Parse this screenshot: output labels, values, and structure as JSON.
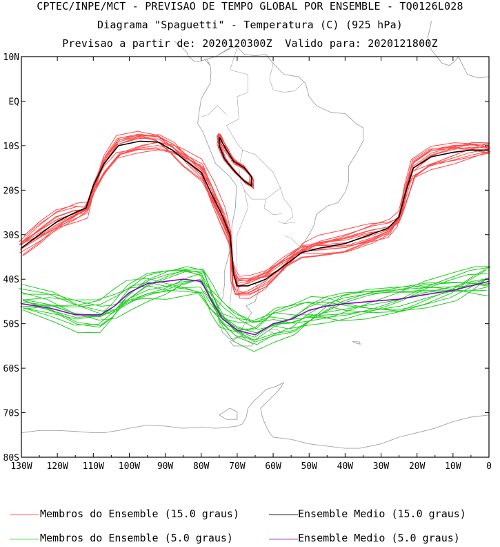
{
  "title": {
    "line1": "CPTEC/INPE/MCT - PREVISAO DE TEMPO GLOBAL POR ENSEMBLE - TQ0126L028",
    "line2": "Diagrama \"Spaguetti\" - Temperatura (C) (925 hPa)",
    "line3": "Previsao a partir de: 2020120300Z  Valido para: 2020121800Z"
  },
  "axes": {
    "lat_labels": [
      "10N",
      "EQ",
      "10S",
      "20S",
      "30S",
      "40S",
      "50S",
      "60S",
      "70S",
      "80S"
    ],
    "lon_labels": [
      "130W",
      "120W",
      "110W",
      "100W",
      "90W",
      "80W",
      "70W",
      "60W",
      "50W",
      "40W",
      "30W",
      "20W",
      "10W",
      "0"
    ]
  },
  "legend": [
    {
      "label": "Membros do Ensemble (15.0 graus)",
      "color": "#ff4a4a"
    },
    {
      "label": "Ensemble Medio (15.0 graus)",
      "color": "#000000"
    },
    {
      "label": "Membros do Ensemble (5.0 graus)",
      "color": "#22cc22"
    },
    {
      "label": "Ensemble Medio (5.0 graus)",
      "color": "#8800cc"
    }
  ],
  "colors": {
    "coast": "#a0a0a0",
    "member15": "#ff4a4a",
    "mean15": "#000000",
    "member5": "#22cc22",
    "mean5": "#8800cc"
  },
  "chart_data": {
    "type": "map-contour",
    "variable": "Temperatura (C) 925 hPa",
    "lon_range": [
      -130,
      0
    ],
    "lat_range": [
      -80,
      10
    ],
    "isotherms": [
      {
        "name": "Ensemble Medio (15.0 graus)",
        "value_c": 15.0,
        "points": [
          [
            -130,
            -33
          ],
          [
            -125,
            -30
          ],
          [
            -120,
            -27
          ],
          [
            -115,
            -25
          ],
          [
            -112,
            -24
          ],
          [
            -110,
            -19
          ],
          [
            -107,
            -14
          ],
          [
            -103,
            -10
          ],
          [
            -97,
            -9
          ],
          [
            -92,
            -9.2
          ],
          [
            -88,
            -11
          ],
          [
            -85,
            -13
          ],
          [
            -80,
            -16
          ],
          [
            -77,
            -21
          ],
          [
            -74,
            -26
          ],
          [
            -72,
            -30
          ],
          [
            -71.5,
            -34
          ],
          [
            -71,
            -39
          ],
          [
            -70,
            -41.5
          ],
          [
            -67,
            -41.5
          ],
          [
            -62,
            -40
          ],
          [
            -57,
            -37
          ],
          [
            -52,
            -34
          ],
          [
            -47,
            -33
          ],
          [
            -40,
            -32
          ],
          [
            -33,
            -30
          ],
          [
            -28,
            -28.5
          ],
          [
            -25,
            -26
          ],
          [
            -23,
            -20
          ],
          [
            -21,
            -15
          ],
          [
            -16,
            -12.5
          ],
          [
            -10,
            -11.5
          ],
          [
            -5,
            -11
          ],
          [
            0,
            -11
          ]
        ]
      },
      {
        "name": "Ensemble Medio (5.0 graus)",
        "value_c": 5.0,
        "points": [
          [
            -130,
            -45.5
          ],
          [
            -122,
            -46.5
          ],
          [
            -115,
            -48
          ],
          [
            -108,
            -48
          ],
          [
            -104,
            -46
          ],
          [
            -100,
            -43
          ],
          [
            -95,
            -41
          ],
          [
            -90,
            -40.5
          ],
          [
            -85,
            -40
          ],
          [
            -80,
            -40.5
          ],
          [
            -77,
            -45
          ],
          [
            -74,
            -49
          ],
          [
            -70,
            -51.5
          ],
          [
            -65,
            -52.5
          ],
          [
            -60,
            -50
          ],
          [
            -55,
            -49
          ],
          [
            -50,
            -47
          ],
          [
            -45,
            -46
          ],
          [
            -40,
            -45.5
          ],
          [
            -33,
            -45
          ],
          [
            -25,
            -44.5
          ],
          [
            -18,
            -43.5
          ],
          [
            -10,
            -42.5
          ],
          [
            -5,
            -41.5
          ],
          [
            0,
            -40.5
          ]
        ]
      }
    ],
    "member_counts": {
      "15.0 graus": 15,
      "5.0 graus": 15
    }
  }
}
